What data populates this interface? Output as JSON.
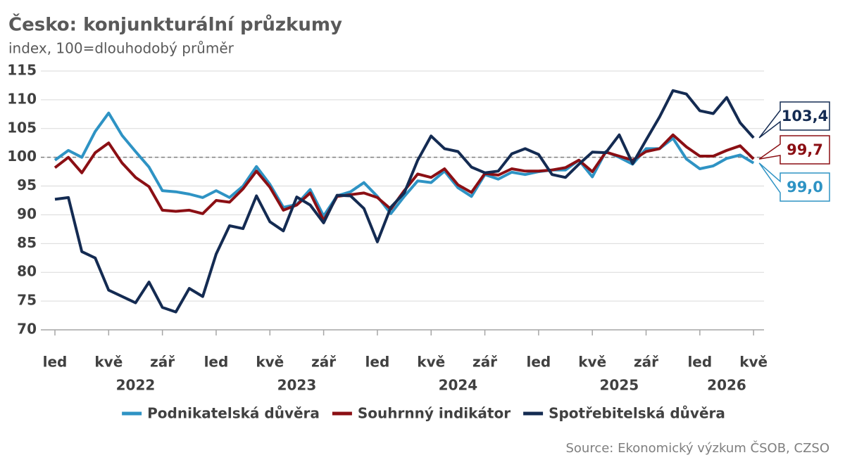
{
  "chart_data": {
    "type": "line",
    "title": "Česko: konjunkturální průzkumy",
    "subtitle": "index, 100=dlouhodobý průměr",
    "source": "Source: Ekonomický výzkum ČSOB, CZSO",
    "categories": [
      "led",
      null,
      null,
      null,
      "kvě",
      null,
      null,
      null,
      "zář",
      null,
      null,
      null,
      "led",
      null,
      null,
      null,
      "kvě",
      null,
      null,
      null,
      "zář",
      null,
      null,
      null,
      "led",
      null,
      null,
      null,
      "kvě",
      null,
      null,
      null,
      "zář",
      null,
      null,
      null,
      "led",
      null,
      null,
      null,
      "kvě",
      null,
      null,
      null,
      "zář",
      null,
      null,
      null,
      "led",
      null,
      null,
      null,
      "kvě"
    ],
    "x_groups": [
      {
        "label": "2022",
        "count": 12
      },
      {
        "label": "2023",
        "count": 12
      },
      {
        "label": "2024",
        "count": 12
      },
      {
        "label": "2025",
        "count": 12
      },
      {
        "label": "2026",
        "count": 5
      }
    ],
    "ylim": [
      70,
      115
    ],
    "yticks": [
      70,
      75,
      80,
      85,
      90,
      95,
      100,
      105,
      110,
      115
    ],
    "grid": true,
    "reference_line": 100,
    "legend": "bottom",
    "series": [
      {
        "name": "Podnikatelská důvěra",
        "color": "#2e93c4",
        "values": [
          99.5,
          101.2,
          100.0,
          104.5,
          107.7,
          103.8,
          101.0,
          98.3,
          94.2,
          94.0,
          93.6,
          93.0,
          94.2,
          93.0,
          95.0,
          98.4,
          95.3,
          91.3,
          91.8,
          94.4,
          89.8,
          93.3,
          94.0,
          95.6,
          93.2,
          90.2,
          93.2,
          95.9,
          95.6,
          97.6,
          94.7,
          93.2,
          97.0,
          96.2,
          97.4,
          97.0,
          97.5,
          97.8,
          97.8,
          99.5,
          96.6,
          101.0,
          100.0,
          98.8,
          101.5,
          101.5,
          103.3,
          99.7,
          98.0,
          98.5,
          99.8,
          100.4,
          99.0
        ],
        "value_labels": [
          null,
          null,
          null,
          null,
          null,
          null,
          null,
          null,
          null,
          null,
          null,
          null,
          null,
          null,
          null,
          null,
          null,
          null,
          null,
          null,
          null,
          null,
          null,
          null,
          null,
          null,
          null,
          null,
          null,
          null,
          null,
          null,
          null,
          null,
          null,
          null,
          null,
          null,
          null,
          null,
          null,
          null,
          null,
          null,
          null,
          null,
          null,
          null,
          null,
          null,
          null,
          null,
          "99,0"
        ]
      },
      {
        "name": "Souhrnný indikátor",
        "color": "#8b0f14",
        "values": [
          98.2,
          100.0,
          97.3,
          100.8,
          102.5,
          99.0,
          96.5,
          94.9,
          90.8,
          90.6,
          90.8,
          90.2,
          92.5,
          92.2,
          94.5,
          97.6,
          94.8,
          90.8,
          91.7,
          93.8,
          89.0,
          93.2,
          93.5,
          93.8,
          93.0,
          91.0,
          94.2,
          97.1,
          96.5,
          98.0,
          95.2,
          93.9,
          97.2,
          96.9,
          98.0,
          97.6,
          97.6,
          97.8,
          98.2,
          99.5,
          97.5,
          100.9,
          100.2,
          99.5,
          101.0,
          101.5,
          103.9,
          101.8,
          100.2,
          100.2,
          101.2,
          102.0,
          99.7
        ],
        "value_labels": [
          null,
          null,
          null,
          null,
          null,
          null,
          null,
          null,
          null,
          null,
          null,
          null,
          null,
          null,
          null,
          null,
          null,
          null,
          null,
          null,
          null,
          null,
          null,
          null,
          null,
          null,
          null,
          null,
          null,
          null,
          null,
          null,
          null,
          null,
          null,
          null,
          null,
          null,
          null,
          null,
          null,
          null,
          null,
          null,
          null,
          null,
          null,
          null,
          null,
          null,
          null,
          null,
          "99,7"
        ]
      },
      {
        "name": "Spotřebitelská důvěra",
        "color": "#142b52",
        "values": [
          92.7,
          93.0,
          83.6,
          82.5,
          76.9,
          75.8,
          74.7,
          78.3,
          73.9,
          73.1,
          77.2,
          75.8,
          83.2,
          88.1,
          87.6,
          93.3,
          88.8,
          87.2,
          93.1,
          91.7,
          88.6,
          93.4,
          93.3,
          91.1,
          85.3,
          91.3,
          93.8,
          99.5,
          103.7,
          101.5,
          101.0,
          98.3,
          97.3,
          97.6,
          100.6,
          101.5,
          100.5,
          97.0,
          96.5,
          98.8,
          100.9,
          100.8,
          103.9,
          98.9,
          103.0,
          107.0,
          111.6,
          111.0,
          108.1,
          107.6,
          110.4,
          106.0,
          103.4
        ],
        "value_labels": [
          null,
          null,
          null,
          null,
          null,
          null,
          null,
          null,
          null,
          null,
          null,
          null,
          null,
          null,
          null,
          null,
          null,
          null,
          null,
          null,
          null,
          null,
          null,
          null,
          null,
          null,
          null,
          null,
          null,
          null,
          null,
          null,
          null,
          null,
          null,
          null,
          null,
          null,
          null,
          null,
          null,
          null,
          null,
          null,
          null,
          null,
          null,
          null,
          null,
          null,
          null,
          null,
          "103,4"
        ]
      }
    ]
  }
}
